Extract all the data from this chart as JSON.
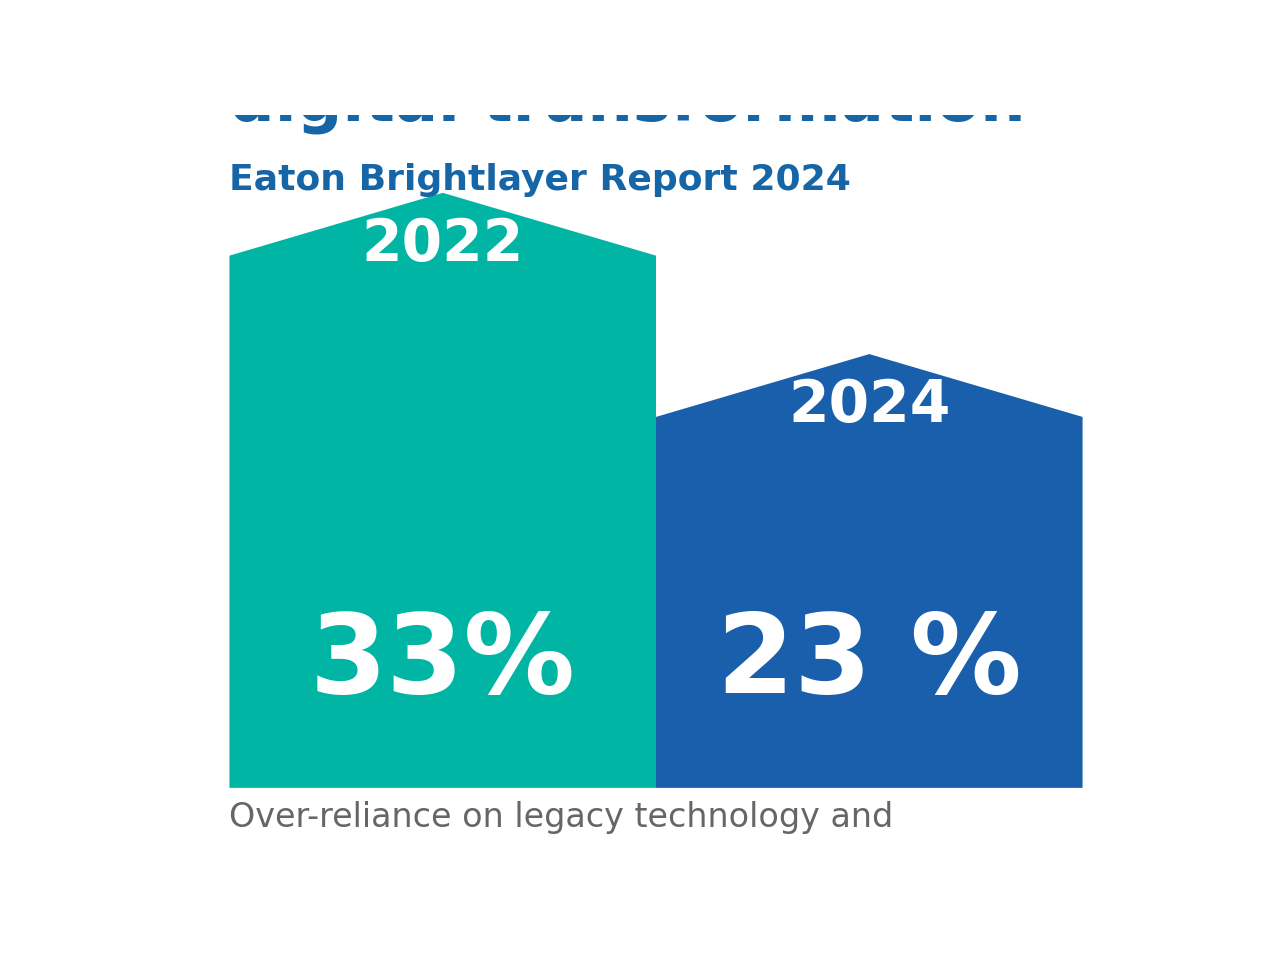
{
  "title_visible": "digital transformation",
  "subtitle": "Eaton Brightlayer Report 2024",
  "title_color": "#1565A7",
  "subtitle_color": "#1565A7",
  "bar1_year": "2022",
  "bar1_pct": "33%",
  "bar1_value": 33,
  "bar1_color": "#00B5A3",
  "bar2_year": "2024",
  "bar2_pct": "23 %",
  "bar2_value": 23,
  "bar2_color": "#1A5FAB",
  "bottom_text": "Over-reliance on legacy technology and",
  "text_color_white": "#FFFFFF",
  "bg_color": "#FFFFFF",
  "bottom_text_color": "#666666"
}
